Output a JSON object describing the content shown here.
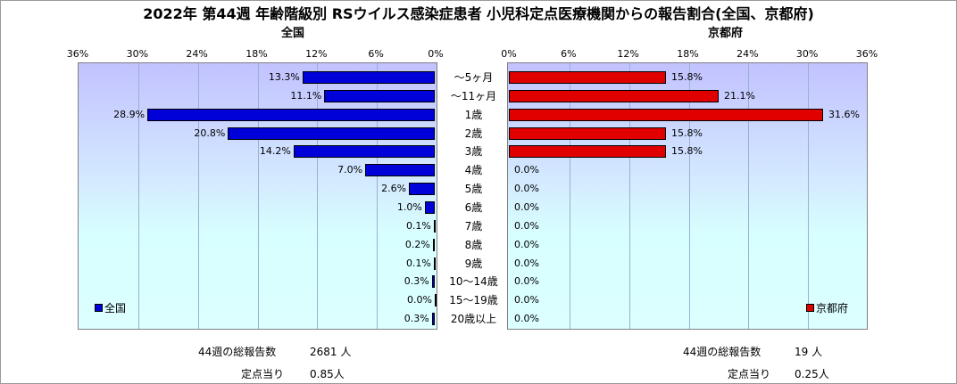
{
  "title": "2022年 第44週 年齢階級別 RSウイルス感染症患者 小児科定点医療機関からの報告割合(全国、京都府)",
  "chart_data": [
    {
      "type": "bar",
      "title": "全国",
      "orientation": "horizontal",
      "x_reversed": true,
      "categories": [
        "～5ヶ月",
        "～11ヶ月",
        "1歳",
        "2歳",
        "3歳",
        "4歳",
        "5歳",
        "6歳",
        "7歳",
        "8歳",
        "9歳",
        "10～14歳",
        "15～19歳",
        "20歳以上"
      ],
      "series": [
        {
          "name": "全国",
          "color": "#0000d8",
          "values": [
            13.3,
            11.1,
            28.9,
            20.8,
            14.2,
            7.0,
            2.6,
            1.0,
            0.1,
            0.2,
            0.1,
            0.3,
            0.0,
            0.3
          ]
        }
      ],
      "value_labels": [
        "13.3%",
        "11.1%",
        "28.9%",
        "20.8%",
        "14.2%",
        "7.0%",
        "2.6%",
        "1.0%",
        "0.1%",
        "0.2%",
        "0.1%",
        "0.3%",
        "0.0%",
        "0.3%"
      ],
      "xlim": [
        0,
        36
      ],
      "xticks": [
        "36%",
        "30%",
        "24%",
        "18%",
        "12%",
        "6%",
        "0%"
      ],
      "legend": "bottom-left",
      "grid": true
    },
    {
      "type": "bar",
      "title": "京都府",
      "orientation": "horizontal",
      "categories": [
        "～5ヶ月",
        "～11ヶ月",
        "1歳",
        "2歳",
        "3歳",
        "4歳",
        "5歳",
        "6歳",
        "7歳",
        "8歳",
        "9歳",
        "10～14歳",
        "15～19歳",
        "20歳以上"
      ],
      "series": [
        {
          "name": "京都府",
          "color": "#e00000",
          "values": [
            15.8,
            21.1,
            31.6,
            15.8,
            15.8,
            0.0,
            0.0,
            0.0,
            0.0,
            0.0,
            0.0,
            0.0,
            0.0,
            0.0
          ]
        }
      ],
      "value_labels": [
        "15.8%",
        "21.1%",
        "31.6%",
        "15.8%",
        "15.8%",
        "0.0%",
        "0.0%",
        "0.0%",
        "0.0%",
        "0.0%",
        "0.0%",
        "0.0%",
        "0.0%",
        "0.0%"
      ],
      "xlim": [
        0,
        36
      ],
      "xticks": [
        "0%",
        "6%",
        "12%",
        "18%",
        "24%",
        "30%",
        "36%"
      ],
      "legend": "bottom-right",
      "grid": true
    }
  ],
  "footer": {
    "national": {
      "total_label": "44週の総報告数",
      "total_value": "2681 人",
      "per_label": "定点当り",
      "per_value": "0.85人"
    },
    "kyoto": {
      "total_label": "44週の総報告数",
      "total_value": "19 人",
      "per_label": "定点当り",
      "per_value": "0.25人"
    }
  }
}
